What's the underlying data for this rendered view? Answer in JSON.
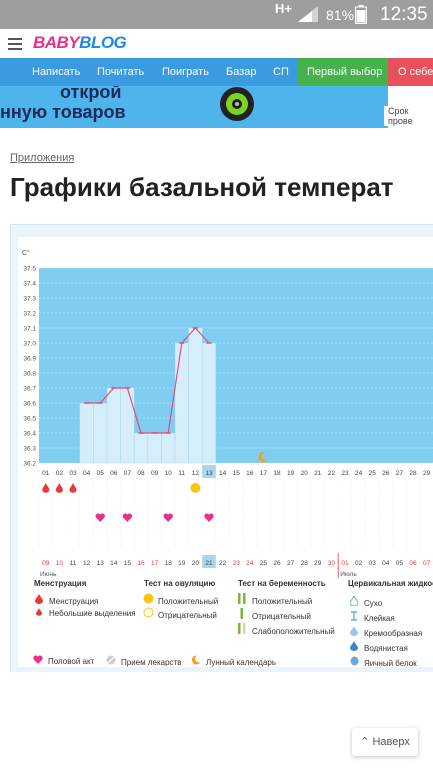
{
  "status_bar": {
    "network": "H+",
    "battery": "81%",
    "time": "12:35"
  },
  "header": {
    "logo_part1": "BABY",
    "logo_part2": "BLOG"
  },
  "nav": {
    "items": [
      "Написать",
      "Почитать",
      "Поиграть",
      "Базар",
      "СП",
      "Первый выбор",
      "О себе"
    ]
  },
  "banner": {
    "line1": "открой",
    "line2": "нную товаров",
    "side_text": "Срок прове"
  },
  "breadcrumb": "Приложения",
  "page_title": "Графики базальной температ",
  "chart_data": {
    "type": "line",
    "unit": "C°",
    "y_ticks": [
      "37.5",
      "37.4",
      "37.3",
      "37.2",
      "37.1",
      "37.0",
      "36.9",
      "36.8",
      "36.7",
      "36.6",
      "36.5",
      "36.4",
      "36.3",
      "36.2"
    ],
    "ylim": [
      36.2,
      37.5
    ],
    "cycle_days": [
      "01",
      "02",
      "03",
      "04",
      "05",
      "06",
      "07",
      "08",
      "09",
      "10",
      "11",
      "12",
      "13",
      "14",
      "15",
      "16",
      "17",
      "18",
      "19",
      "20",
      "21",
      "22",
      "23",
      "24",
      "25",
      "26",
      "27",
      "28",
      "29"
    ],
    "temperatures": [
      null,
      null,
      null,
      36.6,
      36.6,
      36.7,
      36.7,
      36.4,
      36.4,
      36.4,
      37.0,
      37.1,
      37.0,
      null,
      null,
      null,
      null,
      null,
      null,
      null,
      null,
      null,
      null,
      null,
      null,
      null,
      null,
      null,
      null
    ],
    "highlighted_day": "13",
    "menstruation_days": [
      "01",
      "02",
      "03"
    ],
    "ovulation_test_positive_day": "12",
    "lunar_calendar_day": "17",
    "intercourse_days": [
      "05",
      "07",
      "10",
      "13"
    ],
    "dates": [
      "09",
      "10",
      "11",
      "12",
      "13",
      "14",
      "15",
      "16",
      "17",
      "18",
      "19",
      "20",
      "21",
      "22",
      "23",
      "24",
      "25",
      "26",
      "27",
      "28",
      "29",
      "30",
      "01",
      "02",
      "03",
      "04",
      "05",
      "06",
      "07"
    ],
    "highlighted_date": "21",
    "weekend_dates": [
      "09",
      "10",
      "16",
      "17",
      "23",
      "24",
      "30",
      "01",
      "06",
      "07"
    ],
    "month_labels": [
      "Июнь",
      "Июль"
    ]
  },
  "legend": {
    "menstruation": {
      "title": "Менструация",
      "items": [
        "Менструация",
        "Небольшие выделения"
      ]
    },
    "ovulation": {
      "title": "Тест на овуляцию",
      "items": [
        "Положительный",
        "Отрицательный"
      ]
    },
    "pregnancy": {
      "title": "Тест на беременность",
      "items": [
        "Положительный",
        "Отрицательный",
        "Слабоположительный"
      ]
    },
    "cervical": {
      "title": "Цервикальная жидкос",
      "items": [
        "Сухо",
        "Клейкая",
        "Кремообразная",
        "Водянистая",
        "Яичный белок"
      ]
    },
    "bottom": [
      "Половой акт",
      "Прием лекарств",
      "Лунный календарь"
    ]
  },
  "back_button": "Наверх",
  "colors": {
    "plot_bg": "#7fcdf0",
    "bar_fill": "#d6eefa",
    "line": "#e0507a",
    "pink": "#e8308a",
    "red": "#e53935",
    "yellow": "#f5c518",
    "green": "#7cb342",
    "nav": "#3b9be0"
  }
}
